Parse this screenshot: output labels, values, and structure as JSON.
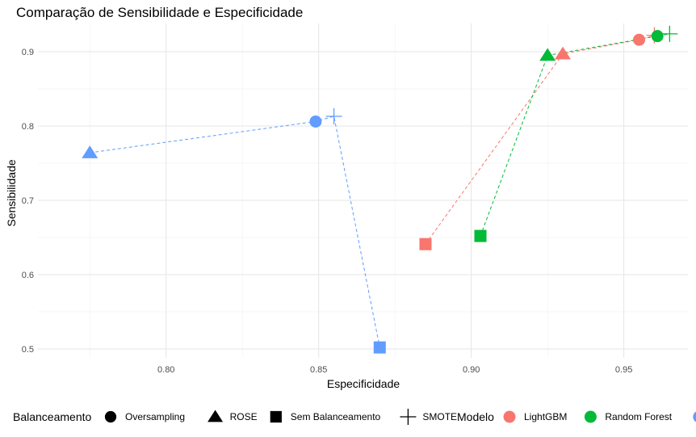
{
  "chart_data": {
    "type": "scatter",
    "title": "Comparação de Sensibilidade e Especificidade",
    "xlabel": "Especificidade",
    "ylabel": "Sensibilidade",
    "xlim": [
      0.758,
      0.971
    ],
    "ylim": [
      0.488,
      0.938
    ],
    "x_ticks": [
      0.8,
      0.85,
      0.9,
      0.95
    ],
    "x_tick_labels": [
      "0.80",
      "0.85",
      "0.90",
      "0.95"
    ],
    "y_ticks": [
      0.5,
      0.6,
      0.7,
      0.8,
      0.9
    ],
    "y_tick_labels": [
      "0.5",
      "0.6",
      "0.7",
      "0.8",
      "0.9"
    ],
    "grid": true,
    "legend_position": "bottom",
    "shape_legend": {
      "title": "Balanceamento",
      "entries": [
        {
          "label": "Oversampling",
          "shape": "circle"
        },
        {
          "label": "ROSE",
          "shape": "triangle"
        },
        {
          "label": "Sem Balanceamento",
          "shape": "square"
        },
        {
          "label": "SMOTE",
          "shape": "plus"
        }
      ]
    },
    "color_legend": {
      "title": "Modelo",
      "entries": [
        {
          "label": "LightGBM",
          "color": "#F8766D"
        },
        {
          "label": "Random Forest",
          "color": "#00BA38"
        },
        {
          "label": "",
          "color": "#619CFF"
        }
      ]
    },
    "series": [
      {
        "name": "LightGBM",
        "color": "#F8766D",
        "points": [
          {
            "balanceamento": "Sem Balanceamento",
            "x": 0.885,
            "y": 0.641
          },
          {
            "balanceamento": "ROSE",
            "x": 0.93,
            "y": 0.897
          },
          {
            "balanceamento": "Oversampling",
            "x": 0.955,
            "y": 0.916
          },
          {
            "balanceamento": "SMOTE",
            "x": 0.96,
            "y": 0.922
          }
        ]
      },
      {
        "name": "Random Forest",
        "color": "#00BA38",
        "points": [
          {
            "balanceamento": "Sem Balanceamento",
            "x": 0.903,
            "y": 0.652
          },
          {
            "balanceamento": "ROSE",
            "x": 0.925,
            "y": 0.895
          },
          {
            "balanceamento": "Oversampling",
            "x": 0.961,
            "y": 0.921
          },
          {
            "balanceamento": "SMOTE",
            "x": 0.965,
            "y": 0.924
          }
        ]
      },
      {
        "name": "",
        "color": "#619CFF",
        "points": [
          {
            "balanceamento": "ROSE",
            "x": 0.775,
            "y": 0.764
          },
          {
            "balanceamento": "Oversampling",
            "x": 0.849,
            "y": 0.806
          },
          {
            "balanceamento": "SMOTE",
            "x": 0.855,
            "y": 0.813
          },
          {
            "balanceamento": "Sem Balanceamento",
            "x": 0.87,
            "y": 0.502
          }
        ]
      }
    ]
  }
}
